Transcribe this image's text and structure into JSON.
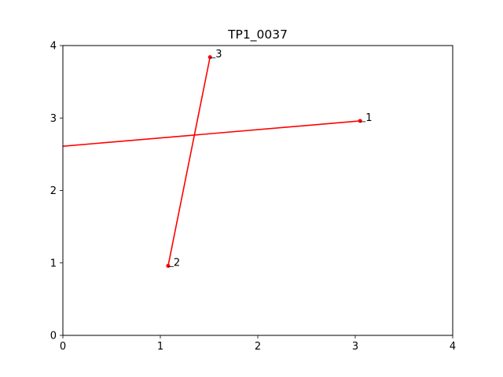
{
  "chart_data": {
    "type": "line",
    "title": "TP1_0037",
    "xlabel": "",
    "ylabel": "",
    "xlim": [
      0,
      4
    ],
    "ylim": [
      0,
      4
    ],
    "xticks": [
      "0",
      "1",
      "2",
      "3",
      "4"
    ],
    "yticks": [
      "0",
      "1",
      "2",
      "3",
      "4"
    ],
    "grid": false,
    "line_color": "#ff0000",
    "series": [
      {
        "points": [
          [
            0,
            2.61
          ],
          [
            3.05,
            2.96
          ]
        ]
      },
      {
        "points": [
          [
            1.08,
            0.96
          ],
          [
            1.51,
            3.84
          ]
        ]
      }
    ],
    "labeled_points": [
      {
        "label": "1",
        "x": 3.05,
        "y": 2.96
      },
      {
        "label": "2",
        "x": 1.08,
        "y": 0.96
      },
      {
        "label": "3",
        "x": 1.51,
        "y": 3.84
      }
    ]
  }
}
